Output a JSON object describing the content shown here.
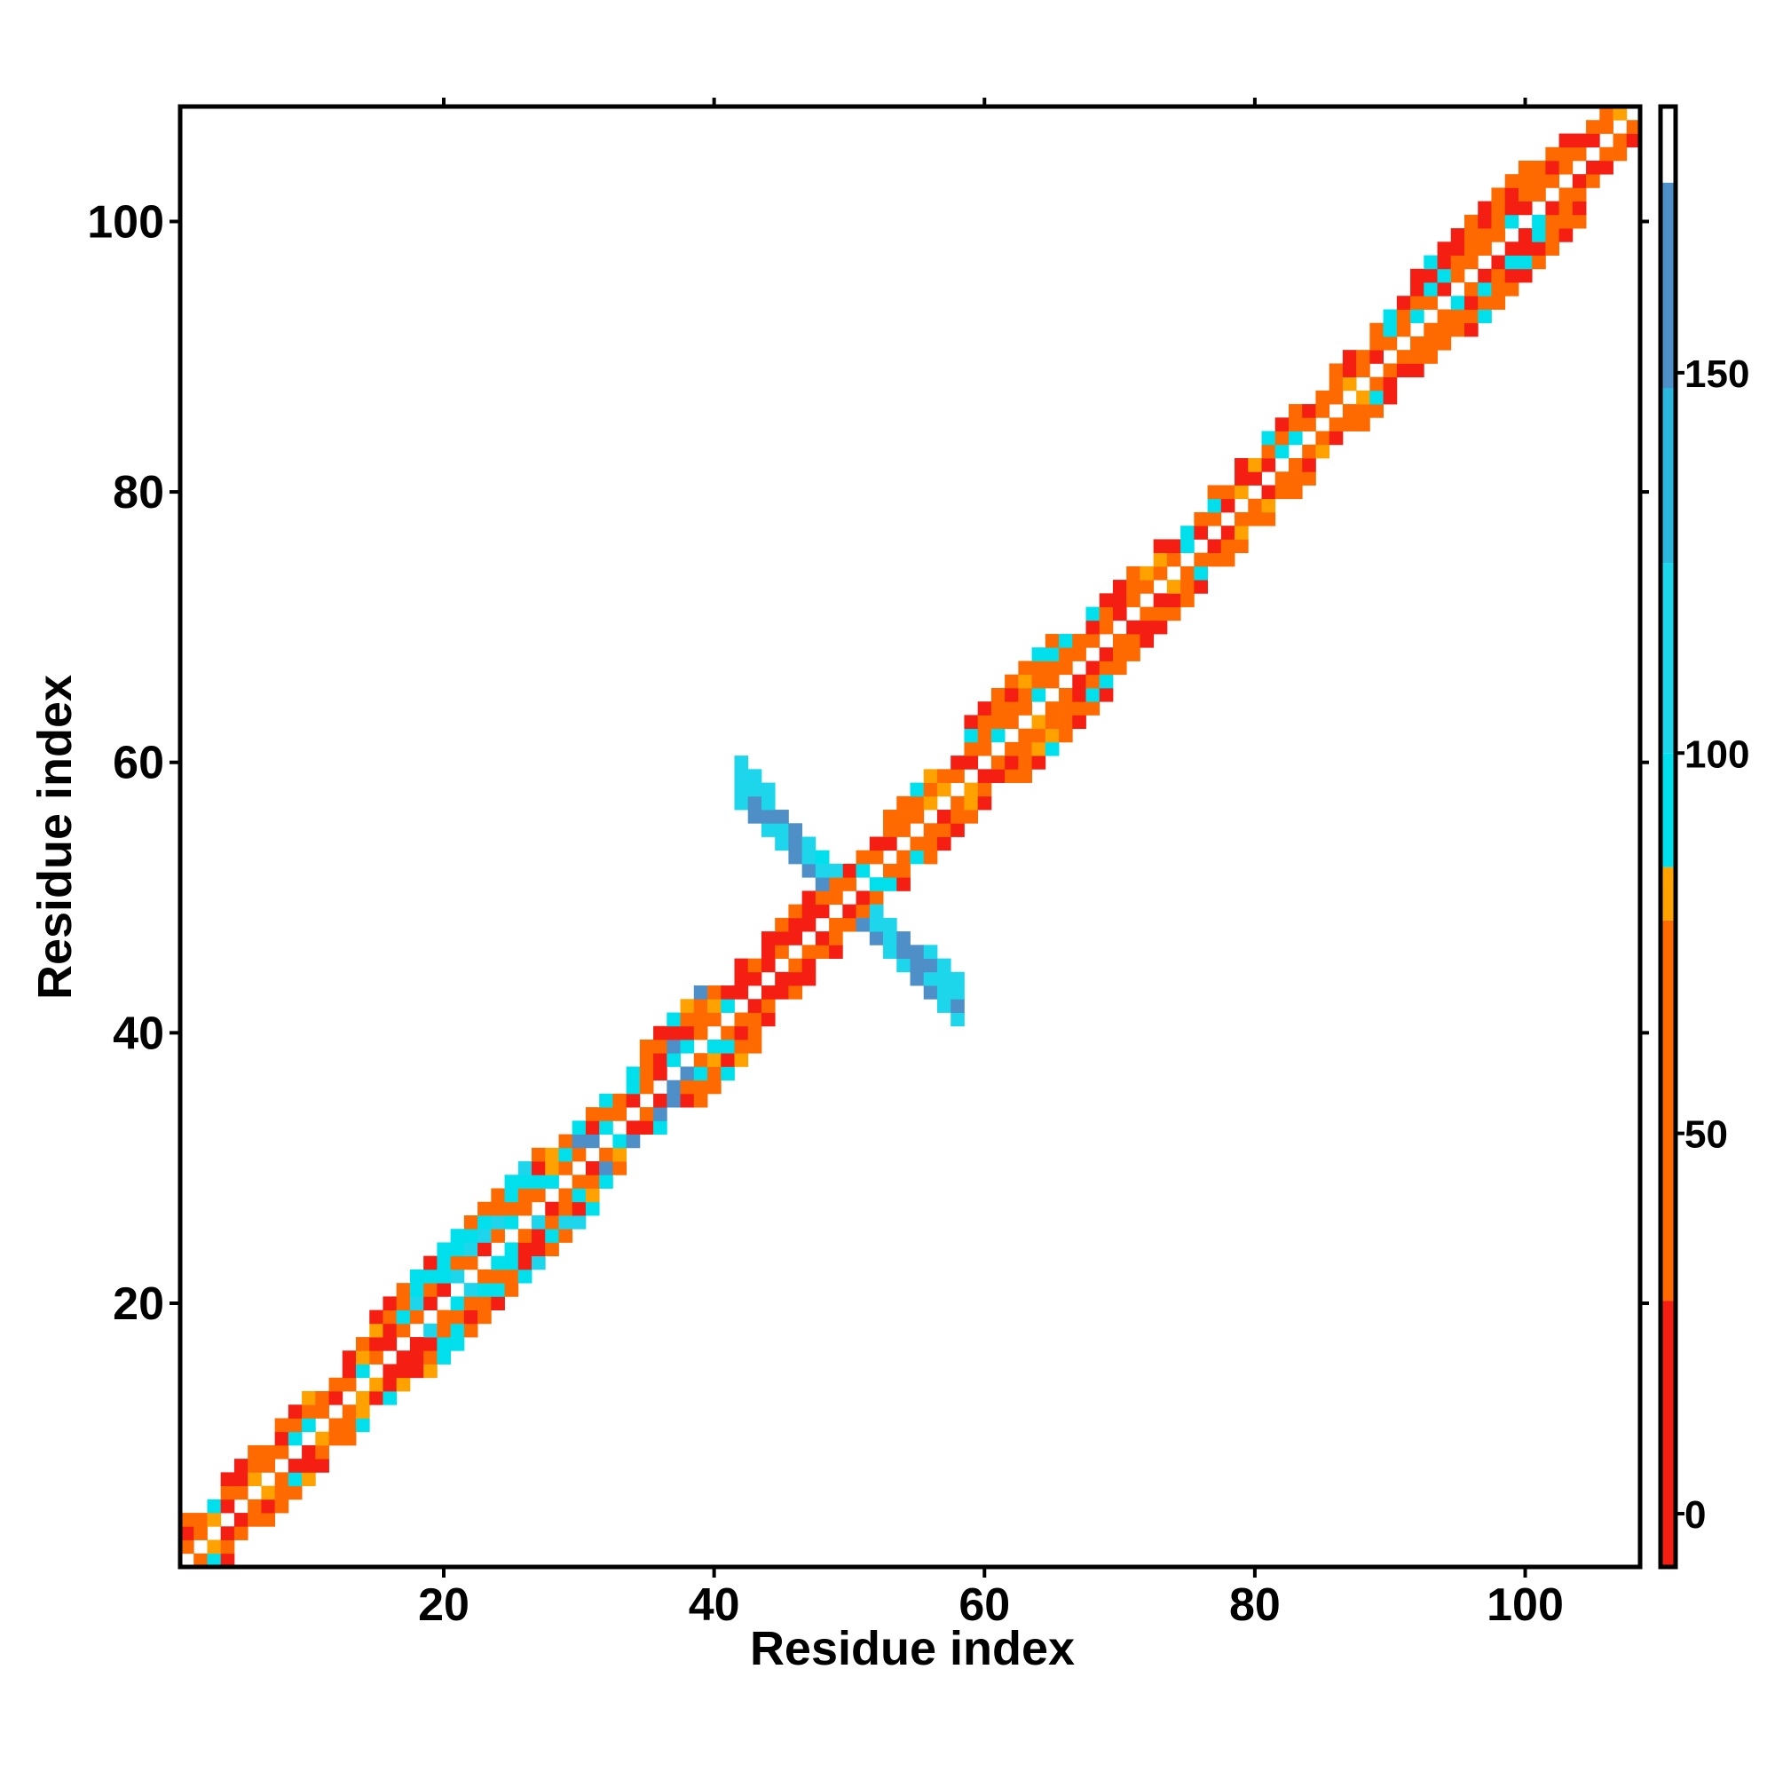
{
  "chart_data": {
    "type": "heatmap",
    "title": "",
    "xlabel": "Residue index",
    "ylabel": "Residue index",
    "xlim": [
      1,
      108
    ],
    "ylim": [
      1,
      108
    ],
    "x_ticks": [
      20,
      40,
      60,
      80,
      100
    ],
    "y_ticks": [
      20,
      40,
      60,
      80,
      100
    ],
    "colorbar": {
      "ticks": [
        0,
        50,
        100,
        150
      ],
      "range": [
        -7,
        185
      ],
      "bands": [
        {
          "from": -7,
          "to": 28,
          "color": "#f41f12"
        },
        {
          "from": 28,
          "to": 78,
          "color": "#ff6a00"
        },
        {
          "from": 78,
          "to": 85,
          "color": "#ffa200"
        },
        {
          "from": 85,
          "to": 100,
          "color": "#00e0ec"
        },
        {
          "from": 100,
          "to": 125,
          "color": "#1ed6ec"
        },
        {
          "from": 125,
          "to": 148,
          "color": "#2bb6de"
        },
        {
          "from": 148,
          "to": 175,
          "color": "#4d8fc6"
        },
        {
          "from": 175,
          "to": 185,
          "color": "#ffffff"
        }
      ]
    },
    "colors": {
      "red": "#f41f12",
      "orange": "#ff6a00",
      "amber": "#ffa200",
      "cyan": "#00e0ec",
      "sky": "#1ed6ec",
      "steel": "#4d8fc6"
    },
    "regions": [
      {
        "start": 1,
        "end": 18,
        "weights": {
          "red": 3,
          "orange": 4,
          "amber": 1,
          "cyan": 1
        }
      },
      {
        "start": 18,
        "end": 29,
        "weights": {
          "red": 2,
          "orange": 4,
          "cyan": 3,
          "sky": 1
        }
      },
      {
        "start": 29,
        "end": 42,
        "weights": {
          "red": 1,
          "orange": 4,
          "amber": 1,
          "cyan": 2,
          "steel": 1
        }
      },
      {
        "start": 42,
        "end": 48,
        "weights": {
          "red": 4,
          "orange": 3
        }
      },
      {
        "start": 48,
        "end": 54,
        "weights": {
          "red": 3,
          "orange": 3,
          "cyan": 1
        }
      },
      {
        "start": 54,
        "end": 70,
        "weights": {
          "red": 2,
          "orange": 5,
          "amber": 1,
          "cyan": 1
        }
      },
      {
        "start": 70,
        "end": 92,
        "weights": {
          "red": 2,
          "orange": 5,
          "amber": 1,
          "cyan": 1
        }
      },
      {
        "start": 92,
        "end": 103,
        "weights": {
          "red": 2,
          "orange": 4,
          "cyan": 2
        }
      },
      {
        "start": 103,
        "end": 108,
        "weights": {
          "red": 3,
          "orange": 4,
          "amber": 1
        }
      }
    ],
    "cross_contact": {
      "center": [
        50,
        50
      ],
      "arm_start": [
        42,
        58
      ],
      "arm_end": [
        58,
        42
      ],
      "weights": {
        "steel": 3,
        "sky": 4,
        "cyan": 1
      }
    }
  }
}
